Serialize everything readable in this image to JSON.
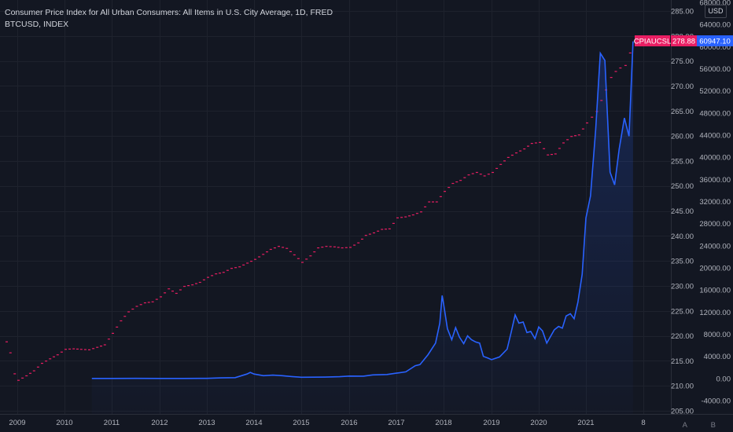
{
  "legend": {
    "line1": "Consumer Price Index for All Urban Consumers: All Items in U.S. City Average, 1D, FRED",
    "line2": "BTCUSD, INDEX"
  },
  "currency_badge": "USD",
  "corner_buttons": {
    "auto": "A",
    "bar_style": "B"
  },
  "colors": {
    "background": "#131722",
    "grid": "#1e222d",
    "cpi": "#e91e63",
    "btc_line": "#2962ff",
    "btc_badge": "#2962ff",
    "cpi_badge": "#e91e63",
    "axis_text": "#b2b5be"
  },
  "price_badges": {
    "cpi_name": "CPIAUCSL",
    "cpi_value": "278.88",
    "btc_value": "60947.10"
  },
  "chart_data": {
    "type": "line",
    "title": "Consumer Price Index for All Urban Consumers: All Items in U.S. City Average, 1D, FRED",
    "x_tick_labels": [
      "2009",
      "2010",
      "2011",
      "2012",
      "2013",
      "2014",
      "2015",
      "2016",
      "2017",
      "2018",
      "2019",
      "2020",
      "2021",
      "8"
    ],
    "x_range": [
      2008.75,
      2021.82
    ],
    "left_axis": {
      "ticks": [
        "285.00",
        "280.00",
        "275.00",
        "270.00",
        "265.00",
        "260.00",
        "255.00",
        "250.00",
        "245.00",
        "240.00",
        "235.00",
        "230.00",
        "225.00",
        "220.00",
        "215.00",
        "210.00",
        "205.00"
      ],
      "range": [
        205,
        285
      ]
    },
    "right_axis": {
      "ticks": [
        "68000.00",
        "64000.00",
        "60000.00",
        "56000.00",
        "52000.00",
        "48000.00",
        "44000.00",
        "40000.00",
        "36000.00",
        "32000.00",
        "28000.00",
        "24000.00",
        "20000.00",
        "16000.00",
        "12000.00",
        "8000.00",
        "4000.00",
        "0.00",
        "-4000.00"
      ],
      "range": [
        -4000,
        68000
      ]
    },
    "grid": true,
    "series": [
      {
        "name": "CPIAUCSL",
        "style": "monthly-steps",
        "axis": "left",
        "points": [
          [
            2008.75,
            218.8
          ],
          [
            2008.83,
            216.6
          ],
          [
            2008.92,
            212.4
          ],
          [
            2009.0,
            211.1
          ],
          [
            2009.17,
            212.0
          ],
          [
            2009.33,
            213.0
          ],
          [
            2009.5,
            214.5
          ],
          [
            2009.67,
            215.4
          ],
          [
            2009.83,
            216.2
          ],
          [
            2010.0,
            217.3
          ],
          [
            2010.17,
            217.4
          ],
          [
            2010.33,
            217.3
          ],
          [
            2010.5,
            217.2
          ],
          [
            2010.67,
            217.7
          ],
          [
            2010.83,
            218.2
          ],
          [
            2011.0,
            220.5
          ],
          [
            2011.17,
            223.0
          ],
          [
            2011.33,
            224.8
          ],
          [
            2011.5,
            225.9
          ],
          [
            2011.67,
            226.6
          ],
          [
            2011.83,
            226.8
          ],
          [
            2012.0,
            227.8
          ],
          [
            2012.17,
            229.4
          ],
          [
            2012.33,
            228.5
          ],
          [
            2012.5,
            229.9
          ],
          [
            2012.67,
            230.2
          ],
          [
            2012.83,
            230.7
          ],
          [
            2013.0,
            231.7
          ],
          [
            2013.17,
            232.4
          ],
          [
            2013.33,
            232.7
          ],
          [
            2013.5,
            233.5
          ],
          [
            2013.67,
            233.8
          ],
          [
            2014.0,
            235.3
          ],
          [
            2014.17,
            236.3
          ],
          [
            2014.33,
            237.3
          ],
          [
            2014.5,
            237.9
          ],
          [
            2014.67,
            237.5
          ],
          [
            2014.83,
            236.2
          ],
          [
            2015.0,
            234.7
          ],
          [
            2015.17,
            236.0
          ],
          [
            2015.33,
            237.6
          ],
          [
            2015.5,
            237.9
          ],
          [
            2015.67,
            237.8
          ],
          [
            2015.83,
            237.6
          ],
          [
            2016.0,
            237.7
          ],
          [
            2016.17,
            238.6
          ],
          [
            2016.33,
            240.1
          ],
          [
            2016.5,
            240.6
          ],
          [
            2016.67,
            241.3
          ],
          [
            2016.83,
            241.4
          ],
          [
            2017.0,
            243.6
          ],
          [
            2017.17,
            243.8
          ],
          [
            2017.33,
            244.2
          ],
          [
            2017.5,
            244.8
          ],
          [
            2017.67,
            246.8
          ],
          [
            2017.83,
            246.8
          ],
          [
            2018.0,
            248.9
          ],
          [
            2018.17,
            250.5
          ],
          [
            2018.33,
            251.1
          ],
          [
            2018.5,
            252.2
          ],
          [
            2018.67,
            252.7
          ],
          [
            2018.83,
            252.0
          ],
          [
            2019.0,
            252.7
          ],
          [
            2019.17,
            254.3
          ],
          [
            2019.33,
            255.7
          ],
          [
            2019.5,
            256.6
          ],
          [
            2019.67,
            257.4
          ],
          [
            2019.83,
            258.5
          ],
          [
            2020.0,
            258.7
          ],
          [
            2020.17,
            256.2
          ],
          [
            2020.33,
            256.4
          ],
          [
            2020.5,
            258.6
          ],
          [
            2020.67,
            259.9
          ],
          [
            2020.83,
            260.2
          ],
          [
            2021.0,
            262.6
          ],
          [
            2021.17,
            264.9
          ],
          [
            2021.25,
            267.1
          ],
          [
            2021.33,
            269.2
          ],
          [
            2021.42,
            271.7
          ],
          [
            2021.5,
            272.9
          ],
          [
            2021.58,
            273.6
          ],
          [
            2021.67,
            274.1
          ],
          [
            2021.75,
            276.6
          ],
          [
            2021.8,
            278.88
          ]
        ]
      },
      {
        "name": "BTCUSD",
        "style": "line-area",
        "axis": "right",
        "points": [
          [
            2010.58,
            0.1
          ],
          [
            2011.0,
            0.3
          ],
          [
            2011.5,
            15
          ],
          [
            2012.0,
            5
          ],
          [
            2012.5,
            8
          ],
          [
            2013.0,
            13
          ],
          [
            2013.3,
            100
          ],
          [
            2013.6,
            140
          ],
          [
            2013.85,
            800
          ],
          [
            2013.92,
            1100
          ],
          [
            2014.0,
            800
          ],
          [
            2014.2,
            500
          ],
          [
            2014.4,
            600
          ],
          [
            2014.6,
            500
          ],
          [
            2014.8,
            350
          ],
          [
            2015.0,
            220
          ],
          [
            2015.5,
            250
          ],
          [
            2015.8,
            320
          ],
          [
            2016.0,
            430
          ],
          [
            2016.3,
            420
          ],
          [
            2016.5,
            650
          ],
          [
            2016.8,
            720
          ],
          [
            2017.0,
            960
          ],
          [
            2017.2,
            1200
          ],
          [
            2017.4,
            2300
          ],
          [
            2017.5,
            2500
          ],
          [
            2017.67,
            4300
          ],
          [
            2017.83,
            6400
          ],
          [
            2017.92,
            10000
          ],
          [
            2017.97,
            15000
          ],
          [
            2018.0,
            13500
          ],
          [
            2018.08,
            9000
          ],
          [
            2018.17,
            7000
          ],
          [
            2018.25,
            9200
          ],
          [
            2018.33,
            7500
          ],
          [
            2018.42,
            6300
          ],
          [
            2018.5,
            7700
          ],
          [
            2018.58,
            7000
          ],
          [
            2018.67,
            6600
          ],
          [
            2018.75,
            6400
          ],
          [
            2018.83,
            4000
          ],
          [
            2018.92,
            3700
          ],
          [
            2019.0,
            3400
          ],
          [
            2019.17,
            3900
          ],
          [
            2019.33,
            5300
          ],
          [
            2019.42,
            8500
          ],
          [
            2019.5,
            11500
          ],
          [
            2019.58,
            10000
          ],
          [
            2019.67,
            10200
          ],
          [
            2019.75,
            8300
          ],
          [
            2019.83,
            8500
          ],
          [
            2019.92,
            7200
          ],
          [
            2020.0,
            9300
          ],
          [
            2020.08,
            8600
          ],
          [
            2020.17,
            6400
          ],
          [
            2020.33,
            8800
          ],
          [
            2020.42,
            9400
          ],
          [
            2020.5,
            9100
          ],
          [
            2020.58,
            11300
          ],
          [
            2020.67,
            11700
          ],
          [
            2020.75,
            10800
          ],
          [
            2020.83,
            13800
          ],
          [
            2020.92,
            18800
          ],
          [
            2021.0,
            29000
          ],
          [
            2021.08,
            33000
          ],
          [
            2021.17,
            45000
          ],
          [
            2021.25,
            58800
          ],
          [
            2021.33,
            57500
          ],
          [
            2021.42,
            37300
          ],
          [
            2021.5,
            35000
          ],
          [
            2021.58,
            41500
          ],
          [
            2021.67,
            47100
          ],
          [
            2021.75,
            43800
          ],
          [
            2021.82,
            60947.1
          ]
        ]
      }
    ]
  }
}
